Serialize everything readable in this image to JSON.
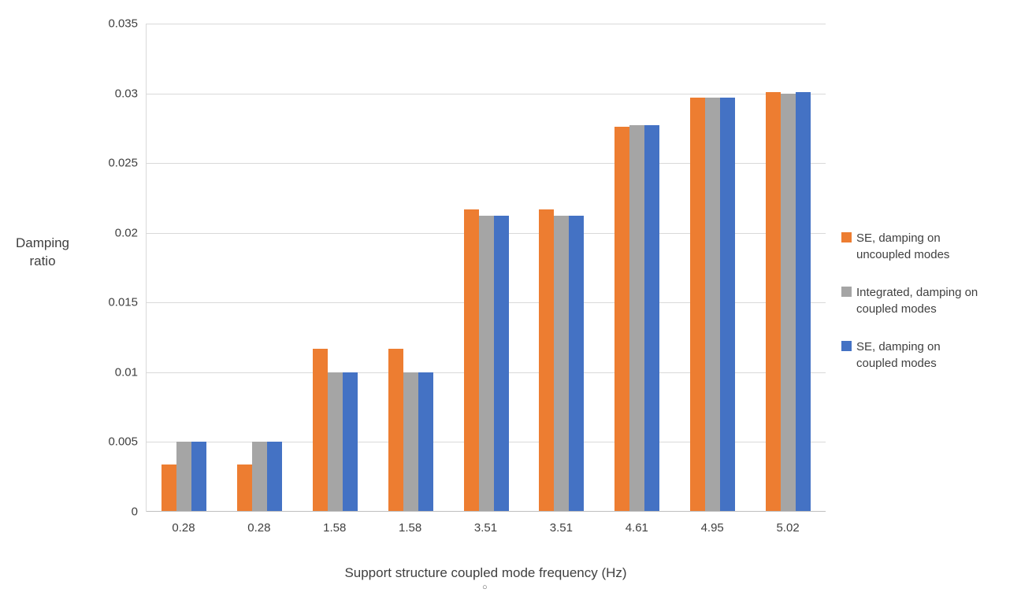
{
  "chart_data": {
    "type": "bar",
    "title": "",
    "xlabel": "Support structure coupled mode frequency (Hz)",
    "ylabel": "Damping ratio",
    "ylabel_lines": [
      "Damping",
      "ratio"
    ],
    "categories": [
      "0.28",
      "0.28",
      "1.58",
      "1.58",
      "3.51",
      "3.51",
      "4.61",
      "4.95",
      "5.02"
    ],
    "yticks": [
      "0",
      "0.005",
      "0.01",
      "0.015",
      "0.02",
      "0.025",
      "0.03",
      "0.035"
    ],
    "ytick_values": [
      0,
      0.005,
      0.01,
      0.015,
      0.02,
      0.025,
      0.03,
      0.035
    ],
    "ylim": [
      0,
      0.035
    ],
    "grid": true,
    "legend_position": "right",
    "series": [
      {
        "name": "SE, damping on uncoupled modes",
        "color": "#ED7D31",
        "values": [
          0.0034,
          0.0034,
          0.0117,
          0.0117,
          0.0217,
          0.0217,
          0.0276,
          0.0297,
          0.0301
        ]
      },
      {
        "name": "Integrated, damping on coupled modes",
        "color": "#A5A5A5",
        "values": [
          0.005,
          0.005,
          0.01,
          0.01,
          0.0212,
          0.0212,
          0.0277,
          0.0297,
          0.03
        ]
      },
      {
        "name": "SE, damping on coupled modes",
        "color": "#4472C4",
        "values": [
          0.005,
          0.005,
          0.01,
          0.01,
          0.0212,
          0.0212,
          0.0277,
          0.0297,
          0.0301
        ]
      }
    ]
  },
  "artifact_mark": "○",
  "colors": {
    "gridline": "#D9D9D9",
    "axis_line": "#BFBFBF",
    "text": "#404040",
    "background": "#FFFFFF"
  }
}
